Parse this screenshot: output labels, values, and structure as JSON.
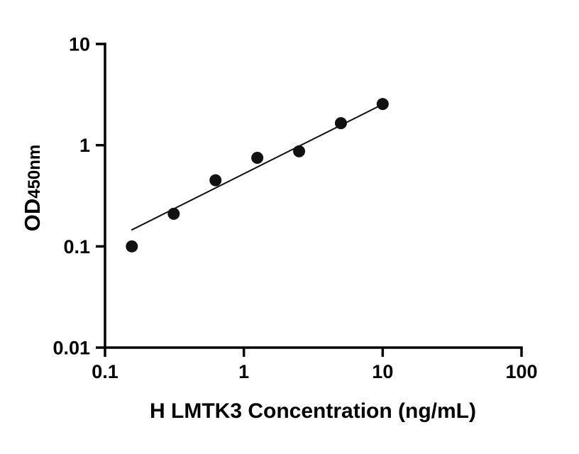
{
  "chart_data": {
    "type": "scatter",
    "xlabel": "H LMTK3 Concentration (ng/mL)",
    "ylabel": "OD450nm",
    "ylabel_main": "OD",
    "ylabel_sub": "450nm",
    "xscale": "log",
    "yscale": "log",
    "xlim": [
      0.1,
      100
    ],
    "ylim": [
      0.01,
      10
    ],
    "x_ticks": [
      0.1,
      1,
      10,
      100
    ],
    "x_tick_labels": [
      "0.1",
      "1",
      "10",
      "100"
    ],
    "y_ticks": [
      10,
      1,
      0.1,
      0.01
    ],
    "y_tick_labels": [
      "10",
      "1",
      "0.1",
      "0.01"
    ],
    "points": [
      {
        "x": 0.156,
        "y": 0.1
      },
      {
        "x": 0.3125,
        "y": 0.21
      },
      {
        "x": 0.625,
        "y": 0.45
      },
      {
        "x": 1.25,
        "y": 0.75
      },
      {
        "x": 2.5,
        "y": 0.87
      },
      {
        "x": 5,
        "y": 1.65
      },
      {
        "x": 10,
        "y": 2.55
      }
    ],
    "trend_line": {
      "x1": 0.155,
      "y1": 0.145,
      "x2": 9.8,
      "y2": 2.5
    },
    "marker_color": "#111111",
    "line_color": "#111111",
    "axis_color": "#000000",
    "grid": false,
    "legend": false
  }
}
